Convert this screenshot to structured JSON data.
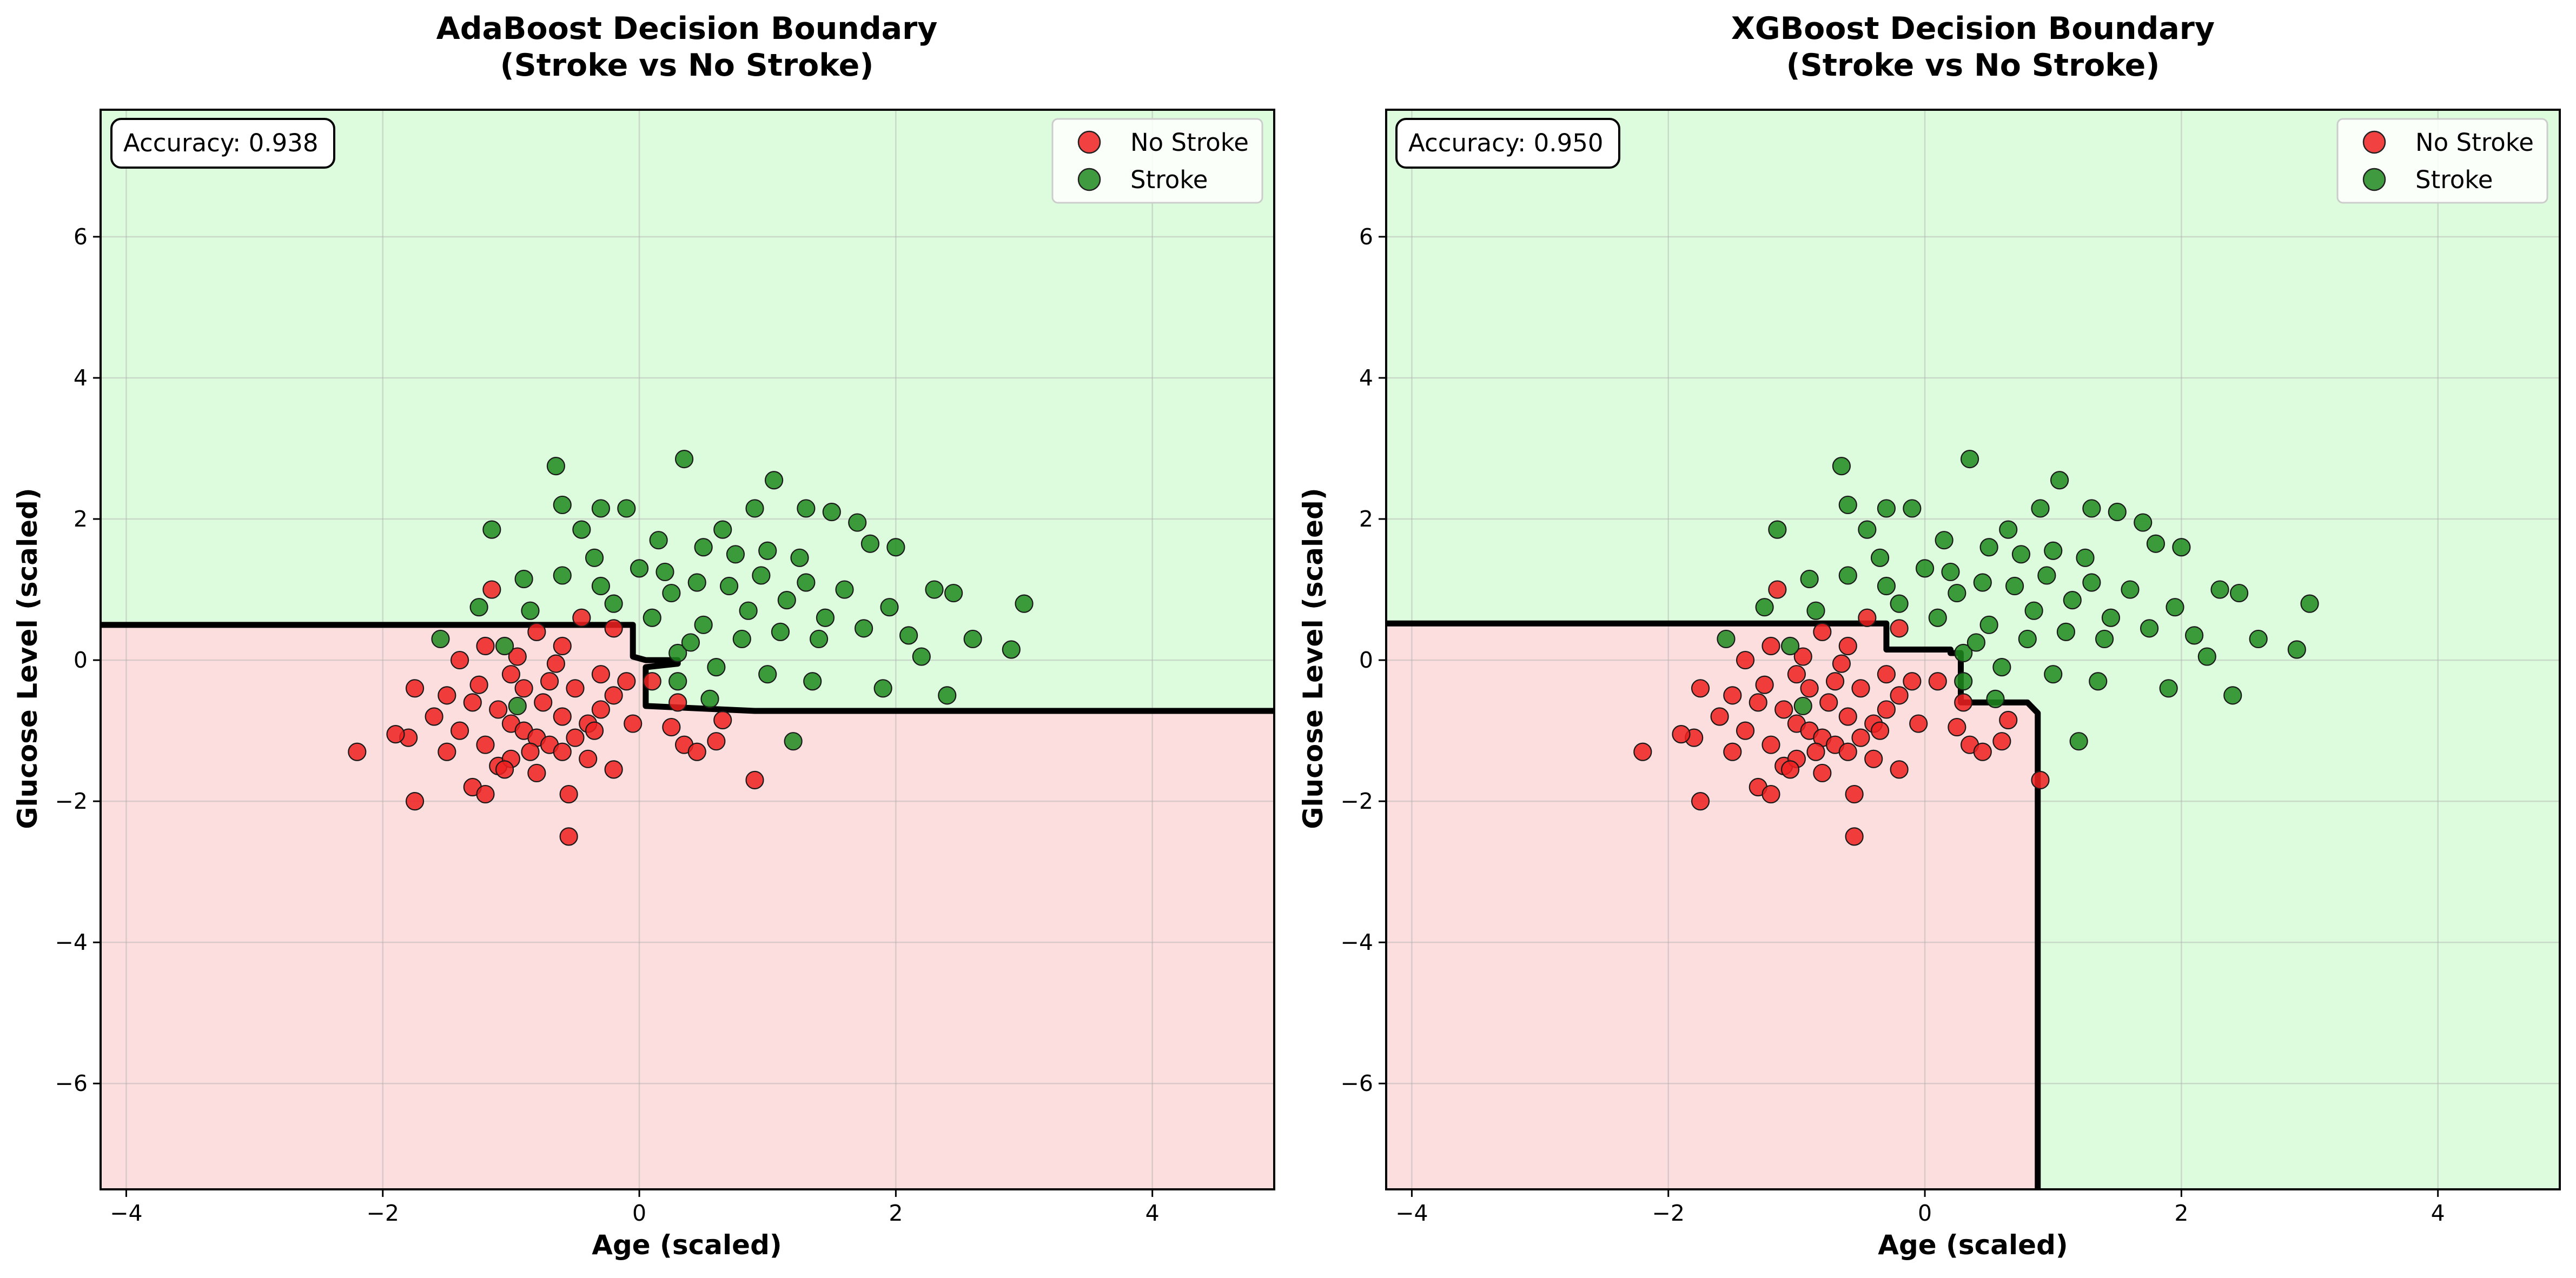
{
  "chart_data": [
    {
      "type": "scatter",
      "title_line1": "AdaBoost Decision Boundary",
      "title_line2": "(Stroke vs No Stroke)",
      "xlabel": "Age (scaled)",
      "ylabel": "Glucose Level (scaled)",
      "xlim": [
        -4.2,
        4.95
      ],
      "ylim": [
        -7.5,
        7.8
      ],
      "xticks": [
        -4,
        -2,
        0,
        2,
        4
      ],
      "yticks": [
        -6,
        -4,
        -2,
        0,
        2,
        4,
        6
      ],
      "grid": true,
      "legend_position": "top-right",
      "accuracy_label": "Accuracy: 0.938",
      "regions": {
        "no_stroke": "#fddede",
        "stroke": "#ddfcdd"
      },
      "boundary": [
        [
          -4.2,
          0.5
        ],
        [
          -0.05,
          0.5
        ],
        [
          -0.05,
          0.05
        ],
        [
          0.05,
          0.0
        ],
        [
          0.3,
          0.0
        ],
        [
          0.3,
          -0.05
        ],
        [
          0.05,
          -0.1
        ],
        [
          0.05,
          -0.65
        ],
        [
          0.9,
          -0.72
        ],
        [
          4.95,
          -0.72
        ]
      ],
      "series": [
        {
          "name": "No Stroke",
          "color": "#ee2020",
          "points": [
            [
              -2.2,
              -1.3
            ],
            [
              -1.75,
              -2.0
            ],
            [
              -1.8,
              -1.1
            ],
            [
              -1.5,
              -1.3
            ],
            [
              -1.3,
              -1.8
            ],
            [
              -1.2,
              -1.9
            ],
            [
              -1.1,
              -1.5
            ],
            [
              -1.5,
              -0.5
            ],
            [
              -1.3,
              -0.6
            ],
            [
              -1.1,
              -0.7
            ],
            [
              -1.0,
              -0.9
            ],
            [
              -0.9,
              -1.0
            ],
            [
              -0.8,
              -1.1
            ],
            [
              -0.7,
              -1.2
            ],
            [
              -0.6,
              -1.3
            ],
            [
              -0.5,
              -1.1
            ],
            [
              -0.4,
              -0.9
            ],
            [
              -0.3,
              -0.7
            ],
            [
              -0.2,
              -0.5
            ],
            [
              -1.4,
              0.0
            ],
            [
              -1.2,
              0.2
            ],
            [
              -1.0,
              -0.2
            ],
            [
              -0.9,
              -0.4
            ],
            [
              -0.7,
              -0.3
            ],
            [
              -0.5,
              -0.4
            ],
            [
              -0.3,
              -0.2
            ],
            [
              -0.1,
              -0.3
            ],
            [
              -1.6,
              -0.8
            ],
            [
              -1.4,
              -1.0
            ],
            [
              -1.2,
              -1.2
            ],
            [
              -0.6,
              -0.8
            ],
            [
              -0.4,
              -1.4
            ],
            [
              -0.8,
              -1.6
            ],
            [
              -1.0,
              -1.4
            ],
            [
              -0.55,
              -1.9
            ],
            [
              -0.55,
              -2.5
            ],
            [
              -0.2,
              -1.55
            ],
            [
              0.35,
              -1.2
            ],
            [
              0.45,
              -1.3
            ],
            [
              0.9,
              -1.7
            ],
            [
              -1.15,
              1.0
            ],
            [
              -0.8,
              0.4
            ],
            [
              -0.6,
              0.2
            ],
            [
              -0.45,
              0.6
            ],
            [
              -0.2,
              0.45
            ],
            [
              0.1,
              -0.3
            ],
            [
              0.3,
              -0.6
            ],
            [
              -1.75,
              -0.4
            ],
            [
              -1.9,
              -1.05
            ],
            [
              -1.05,
              -1.55
            ],
            [
              -0.75,
              -0.6
            ],
            [
              -0.35,
              -1.0
            ],
            [
              0.25,
              -0.95
            ],
            [
              0.6,
              -1.15
            ],
            [
              0.65,
              -0.85
            ],
            [
              -0.95,
              0.05
            ],
            [
              -0.65,
              -0.05
            ],
            [
              -1.25,
              -0.35
            ],
            [
              -0.05,
              -0.9
            ],
            [
              -0.85,
              -1.3
            ]
          ]
        },
        {
          "name": "Stroke",
          "color": "#1e8a1e",
          "points": [
            [
              -0.65,
              2.75
            ],
            [
              0.35,
              2.85
            ],
            [
              1.05,
              2.55
            ],
            [
              -0.6,
              2.2
            ],
            [
              -0.3,
              2.15
            ],
            [
              -0.1,
              2.15
            ],
            [
              0.9,
              2.15
            ],
            [
              1.3,
              2.15
            ],
            [
              1.5,
              2.1
            ],
            [
              1.7,
              1.95
            ],
            [
              -1.15,
              1.85
            ],
            [
              -0.45,
              1.85
            ],
            [
              0.15,
              1.7
            ],
            [
              0.5,
              1.6
            ],
            [
              0.75,
              1.5
            ],
            [
              1.0,
              1.55
            ],
            [
              1.25,
              1.45
            ],
            [
              1.8,
              1.65
            ],
            [
              2.0,
              1.6
            ],
            [
              -0.9,
              1.15
            ],
            [
              -0.6,
              1.2
            ],
            [
              -0.3,
              1.05
            ],
            [
              0.0,
              1.3
            ],
            [
              0.2,
              1.25
            ],
            [
              0.45,
              1.1
            ],
            [
              0.7,
              1.05
            ],
            [
              0.95,
              1.2
            ],
            [
              1.3,
              1.1
            ],
            [
              1.6,
              1.0
            ],
            [
              2.3,
              1.0
            ],
            [
              2.45,
              0.95
            ],
            [
              -1.25,
              0.75
            ],
            [
              -0.85,
              0.7
            ],
            [
              -0.2,
              0.8
            ],
            [
              0.1,
              0.6
            ],
            [
              0.5,
              0.5
            ],
            [
              0.8,
              0.3
            ],
            [
              1.1,
              0.4
            ],
            [
              1.4,
              0.3
            ],
            [
              1.75,
              0.45
            ],
            [
              2.1,
              0.35
            ],
            [
              2.6,
              0.3
            ],
            [
              3.0,
              0.8
            ],
            [
              2.9,
              0.15
            ],
            [
              -1.55,
              0.3
            ],
            [
              -1.05,
              0.2
            ],
            [
              0.3,
              0.1
            ],
            [
              0.6,
              -0.1
            ],
            [
              1.0,
              -0.2
            ],
            [
              1.35,
              -0.3
            ],
            [
              1.9,
              -0.4
            ],
            [
              2.4,
              -0.5
            ],
            [
              -0.95,
              -0.65
            ],
            [
              0.3,
              -0.3
            ],
            [
              0.55,
              -0.55
            ],
            [
              1.2,
              -1.15
            ],
            [
              0.4,
              0.25
            ],
            [
              0.85,
              0.7
            ],
            [
              1.45,
              0.6
            ],
            [
              1.95,
              0.75
            ],
            [
              2.2,
              0.05
            ],
            [
              -0.35,
              1.45
            ],
            [
              0.65,
              1.85
            ],
            [
              1.15,
              0.85
            ],
            [
              0.25,
              0.95
            ]
          ]
        }
      ]
    },
    {
      "type": "scatter",
      "title_line1": "XGBoost Decision Boundary",
      "title_line2": "(Stroke vs No Stroke)",
      "xlabel": "Age (scaled)",
      "ylabel": "Glucose Level (scaled)",
      "xlim": [
        -4.2,
        4.95
      ],
      "ylim": [
        -7.5,
        7.8
      ],
      "xticks": [
        -4,
        -2,
        0,
        2,
        4
      ],
      "yticks": [
        -6,
        -4,
        -2,
        0,
        2,
        4,
        6
      ],
      "grid": true,
      "legend_position": "top-right",
      "accuracy_label": "Accuracy: 0.950",
      "regions": {
        "no_stroke": "#fddede",
        "stroke": "#ddfcdd"
      },
      "boundary": [
        [
          -4.2,
          0.52
        ],
        [
          -0.3,
          0.52
        ],
        [
          -0.3,
          0.15
        ],
        [
          0.2,
          0.15
        ],
        [
          0.2,
          0.1
        ],
        [
          0.28,
          0.1
        ],
        [
          0.28,
          -0.6
        ],
        [
          0.8,
          -0.6
        ],
        [
          0.88,
          -0.75
        ],
        [
          0.88,
          -7.5
        ]
      ],
      "series": [
        {
          "name": "No Stroke",
          "color": "#ee2020",
          "points": [
            [
              -2.2,
              -1.3
            ],
            [
              -1.75,
              -2.0
            ],
            [
              -1.8,
              -1.1
            ],
            [
              -1.5,
              -1.3
            ],
            [
              -1.3,
              -1.8
            ],
            [
              -1.2,
              -1.9
            ],
            [
              -1.1,
              -1.5
            ],
            [
              -1.5,
              -0.5
            ],
            [
              -1.3,
              -0.6
            ],
            [
              -1.1,
              -0.7
            ],
            [
              -1.0,
              -0.9
            ],
            [
              -0.9,
              -1.0
            ],
            [
              -0.8,
              -1.1
            ],
            [
              -0.7,
              -1.2
            ],
            [
              -0.6,
              -1.3
            ],
            [
              -0.5,
              -1.1
            ],
            [
              -0.4,
              -0.9
            ],
            [
              -0.3,
              -0.7
            ],
            [
              -0.2,
              -0.5
            ],
            [
              -1.4,
              0.0
            ],
            [
              -1.2,
              0.2
            ],
            [
              -1.0,
              -0.2
            ],
            [
              -0.9,
              -0.4
            ],
            [
              -0.7,
              -0.3
            ],
            [
              -0.5,
              -0.4
            ],
            [
              -0.3,
              -0.2
            ],
            [
              -0.1,
              -0.3
            ],
            [
              -1.6,
              -0.8
            ],
            [
              -1.4,
              -1.0
            ],
            [
              -1.2,
              -1.2
            ],
            [
              -0.6,
              -0.8
            ],
            [
              -0.4,
              -1.4
            ],
            [
              -0.8,
              -1.6
            ],
            [
              -1.0,
              -1.4
            ],
            [
              -0.55,
              -1.9
            ],
            [
              -0.55,
              -2.5
            ],
            [
              -0.2,
              -1.55
            ],
            [
              0.35,
              -1.2
            ],
            [
              0.45,
              -1.3
            ],
            [
              0.9,
              -1.7
            ],
            [
              -1.15,
              1.0
            ],
            [
              -0.8,
              0.4
            ],
            [
              -0.6,
              0.2
            ],
            [
              -0.45,
              0.6
            ],
            [
              -0.2,
              0.45
            ],
            [
              0.1,
              -0.3
            ],
            [
              0.3,
              -0.6
            ],
            [
              -1.75,
              -0.4
            ],
            [
              -1.9,
              -1.05
            ],
            [
              -1.05,
              -1.55
            ],
            [
              -0.75,
              -0.6
            ],
            [
              -0.35,
              -1.0
            ],
            [
              0.25,
              -0.95
            ],
            [
              0.6,
              -1.15
            ],
            [
              0.65,
              -0.85
            ],
            [
              -0.95,
              0.05
            ],
            [
              -0.65,
              -0.05
            ],
            [
              -1.25,
              -0.35
            ],
            [
              -0.05,
              -0.9
            ],
            [
              -0.85,
              -1.3
            ]
          ]
        },
        {
          "name": "Stroke",
          "color": "#1e8a1e",
          "points": [
            [
              -0.65,
              2.75
            ],
            [
              0.35,
              2.85
            ],
            [
              1.05,
              2.55
            ],
            [
              -0.6,
              2.2
            ],
            [
              -0.3,
              2.15
            ],
            [
              -0.1,
              2.15
            ],
            [
              0.9,
              2.15
            ],
            [
              1.3,
              2.15
            ],
            [
              1.5,
              2.1
            ],
            [
              1.7,
              1.95
            ],
            [
              -1.15,
              1.85
            ],
            [
              -0.45,
              1.85
            ],
            [
              0.15,
              1.7
            ],
            [
              0.5,
              1.6
            ],
            [
              0.75,
              1.5
            ],
            [
              1.0,
              1.55
            ],
            [
              1.25,
              1.45
            ],
            [
              1.8,
              1.65
            ],
            [
              2.0,
              1.6
            ],
            [
              -0.9,
              1.15
            ],
            [
              -0.6,
              1.2
            ],
            [
              -0.3,
              1.05
            ],
            [
              0.0,
              1.3
            ],
            [
              0.2,
              1.25
            ],
            [
              0.45,
              1.1
            ],
            [
              0.7,
              1.05
            ],
            [
              0.95,
              1.2
            ],
            [
              1.3,
              1.1
            ],
            [
              1.6,
              1.0
            ],
            [
              2.3,
              1.0
            ],
            [
              2.45,
              0.95
            ],
            [
              -1.25,
              0.75
            ],
            [
              -0.85,
              0.7
            ],
            [
              -0.2,
              0.8
            ],
            [
              0.1,
              0.6
            ],
            [
              0.5,
              0.5
            ],
            [
              0.8,
              0.3
            ],
            [
              1.1,
              0.4
            ],
            [
              1.4,
              0.3
            ],
            [
              1.75,
              0.45
            ],
            [
              2.1,
              0.35
            ],
            [
              2.6,
              0.3
            ],
            [
              3.0,
              0.8
            ],
            [
              2.9,
              0.15
            ],
            [
              -1.55,
              0.3
            ],
            [
              -1.05,
              0.2
            ],
            [
              0.3,
              0.1
            ],
            [
              0.6,
              -0.1
            ],
            [
              1.0,
              -0.2
            ],
            [
              1.35,
              -0.3
            ],
            [
              1.9,
              -0.4
            ],
            [
              2.4,
              -0.5
            ],
            [
              -0.95,
              -0.65
            ],
            [
              0.3,
              -0.3
            ],
            [
              0.55,
              -0.55
            ],
            [
              1.2,
              -1.15
            ],
            [
              0.4,
              0.25
            ],
            [
              0.85,
              0.7
            ],
            [
              1.45,
              0.6
            ],
            [
              1.95,
              0.75
            ],
            [
              2.2,
              0.05
            ],
            [
              -0.35,
              1.45
            ],
            [
              0.65,
              1.85
            ],
            [
              1.15,
              0.85
            ],
            [
              0.25,
              0.95
            ]
          ]
        }
      ]
    }
  ]
}
